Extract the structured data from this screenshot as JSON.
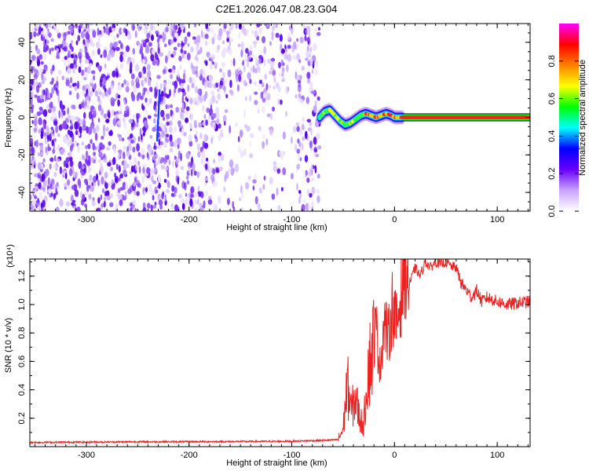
{
  "title": "C2E1.2026.047.08.23.G04",
  "colors": {
    "spectrum_purple": "#6a00ff",
    "snr_line": "#ee2020",
    "black": "#000000"
  },
  "chart_data": [
    {
      "type": "heatmap",
      "name": "spectrogram",
      "xlabel": "Height of straight line (km)",
      "ylabel": "Frequency (Hz)",
      "xlim": [
        -355,
        132
      ],
      "ylim": [
        -50,
        50
      ],
      "x_ticks": [
        -300,
        -200,
        -100,
        0,
        100
      ],
      "x_tick_labels": [
        "-300",
        "-200",
        "-100",
        "0",
        "100"
      ],
      "y_ticks": [
        -40,
        -20,
        0,
        20,
        40
      ],
      "y_tick_labels": [
        "-40",
        "-20",
        "0",
        "20",
        "40"
      ],
      "noise_region_x": [
        -355,
        -73
      ],
      "signal_track": {
        "x": [
          -73,
          -68,
          -63,
          -58,
          -53,
          -48,
          -43,
          -38,
          -33,
          -28,
          -23,
          -18,
          -13,
          -8,
          -3,
          0,
          8
        ],
        "y": [
          0,
          3,
          4,
          1,
          -2,
          -4,
          -3,
          -1,
          1,
          2,
          1,
          0,
          1,
          2,
          1,
          0,
          0
        ]
      },
      "steady_band_x": [
        8,
        132
      ],
      "steady_band_y": 0
    },
    {
      "type": "scale",
      "name": "colorbar",
      "label": "Normalized spectral amplitude",
      "range": [
        0,
        1
      ],
      "ticks": [
        0.0,
        0.2,
        0.4,
        0.6,
        0.8
      ],
      "tick_labels": [
        "0.0",
        "0.2",
        "0.4",
        "0.6",
        "0.8"
      ],
      "colormap": [
        "#ffffff",
        "#c9a3ff",
        "#6a00ff",
        "#0000ff",
        "#00ffff",
        "#00ff00",
        "#ffff00",
        "#ff8000",
        "#ff0000",
        "#ff00ff"
      ]
    },
    {
      "type": "line",
      "name": "snr",
      "xlabel": "Height of straight line (km)",
      "ylabel": "SNR (10 * v/v)",
      "y_multiplier": "(x10⁴)",
      "xlim": [
        -355,
        132
      ],
      "ylim": [
        0,
        13200
      ],
      "x_ticks": [
        -300,
        -200,
        -100,
        0,
        100
      ],
      "x_tick_labels": [
        "-300",
        "-200",
        "-100",
        "0",
        "100"
      ],
      "y_ticks": [
        2000,
        4000,
        6000,
        8000,
        10000,
        12000
      ],
      "y_tick_labels": [
        "0.2",
        "0.4",
        "0.6",
        "0.8",
        "1.0",
        "1.2"
      ],
      "series": [
        {
          "x": [
            -355,
            -300,
            -250,
            -200,
            -150,
            -100,
            -80,
            -65,
            -55,
            -50,
            -46,
            -42,
            -38,
            -34,
            -30,
            -26,
            -22,
            -18,
            -14,
            -10,
            -6,
            -2,
            2,
            6,
            10,
            15,
            20,
            25,
            30,
            35,
            40,
            45,
            50,
            55,
            60,
            65,
            70,
            75,
            80,
            85,
            90,
            100,
            110,
            120,
            132
          ],
          "y": [
            300,
            320,
            340,
            350,
            360,
            380,
            420,
            450,
            500,
            1200,
            4500,
            2500,
            3500,
            2000,
            1500,
            5500,
            6500,
            8500,
            5500,
            9000,
            7500,
            10000,
            8500,
            10500,
            12500,
            11500,
            12600,
            12000,
            13000,
            12600,
            13000,
            12800,
            13000,
            12700,
            12600,
            11500,
            11000,
            10500,
            11000,
            10200,
            10500,
            10200,
            10000,
            10100,
            10200
          ]
        }
      ]
    }
  ]
}
